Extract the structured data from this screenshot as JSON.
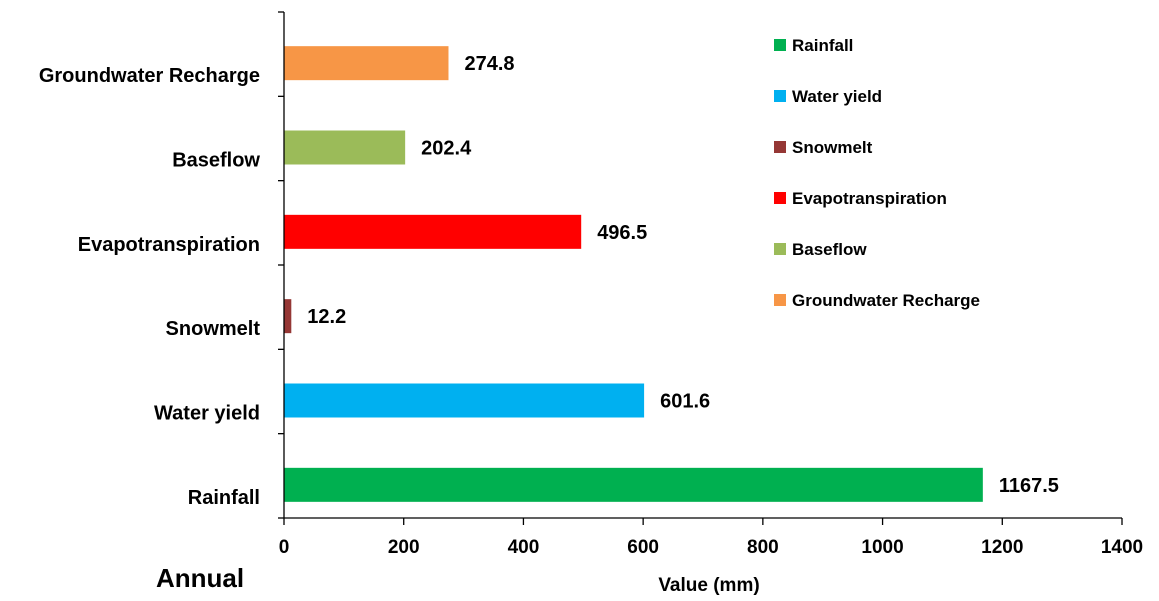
{
  "chart_data": {
    "type": "bar",
    "orientation": "horizontal",
    "title": "",
    "panel_label": "Annual",
    "xlabel": "Value (mm)",
    "ylabel": "",
    "xlim": [
      0,
      1400
    ],
    "x_ticks": [
      0,
      200,
      400,
      600,
      800,
      1000,
      1200,
      1400
    ],
    "grid": false,
    "legend_position": "top-right",
    "categories": [
      "Rainfall",
      "Water yield",
      "Snowmelt",
      "Evapotranspiration",
      "Baseflow",
      "Groundwater Recharge"
    ],
    "values": [
      1167.5,
      601.6,
      12.2,
      496.5,
      202.4,
      274.8
    ],
    "value_labels": [
      "1167.5",
      "601.6",
      "12.2",
      "496.5",
      "202.4",
      "274.8"
    ],
    "colors": [
      "#00b050",
      "#00b0f0",
      "#953735",
      "#ff0000",
      "#9bbb59",
      "#f79646"
    ],
    "legend": [
      "Rainfall",
      "Water yield",
      "Snowmelt",
      "Evapotranspiration",
      "Baseflow",
      "Groundwater Recharge"
    ]
  }
}
